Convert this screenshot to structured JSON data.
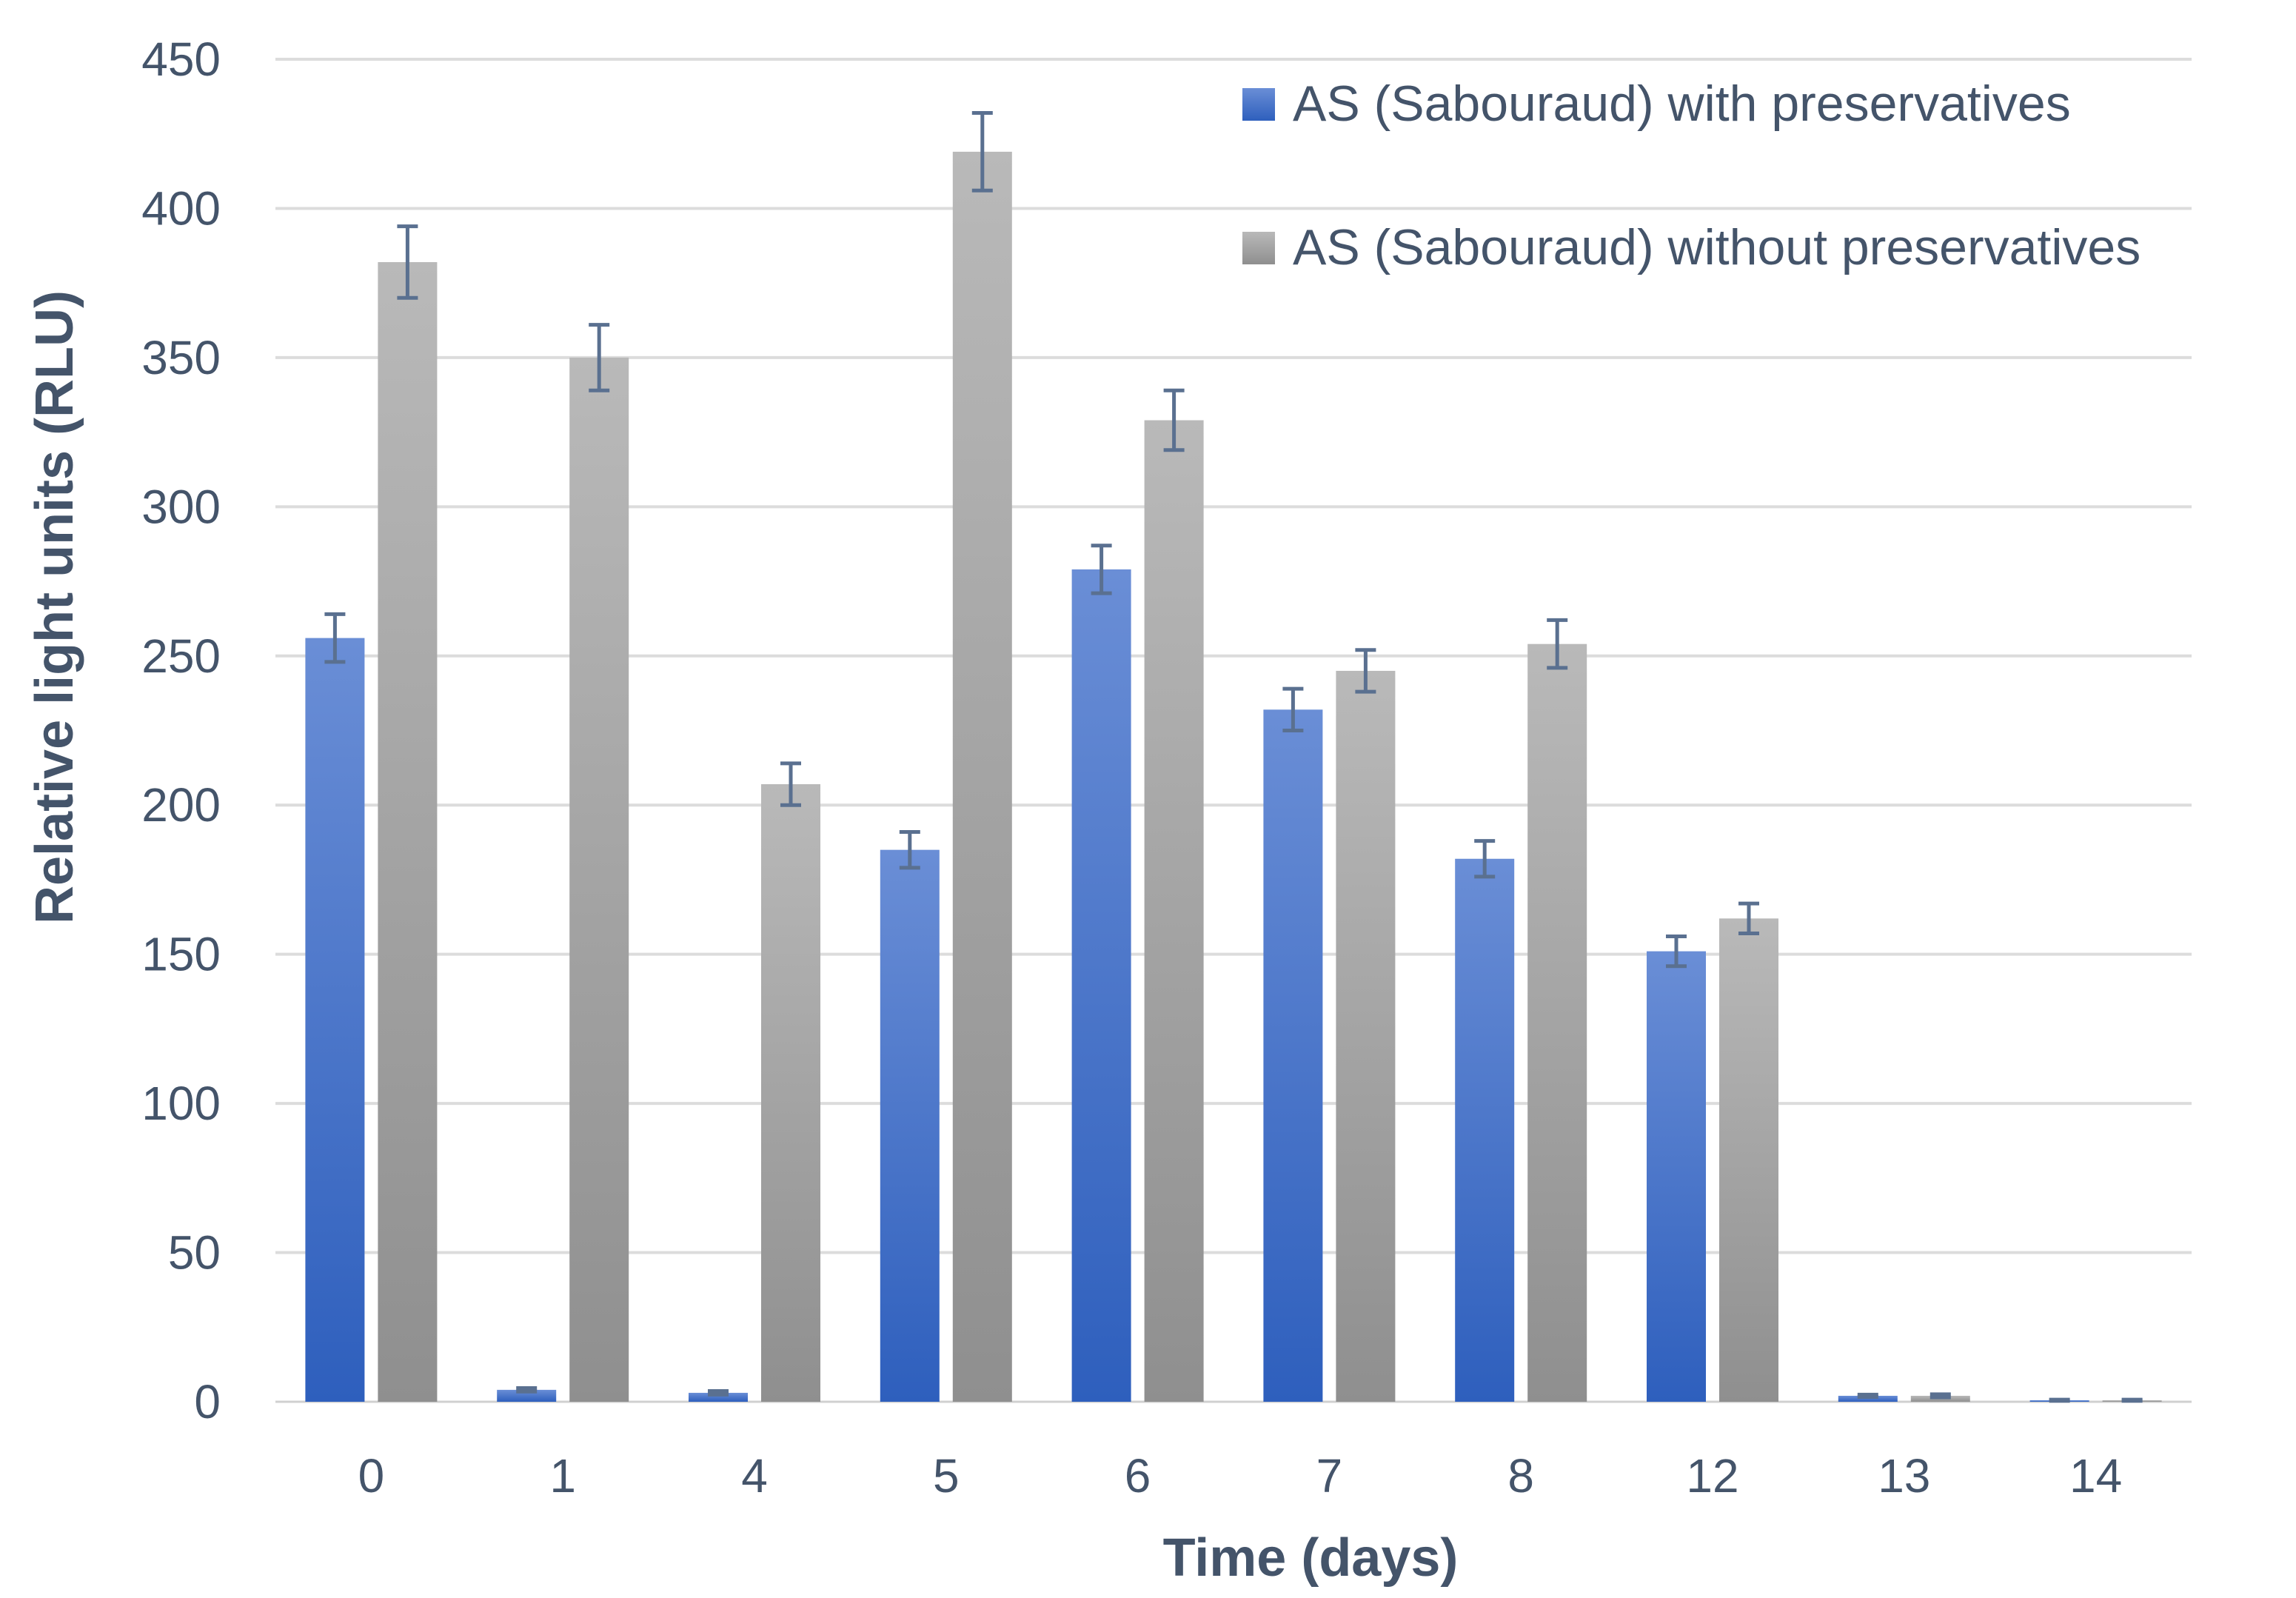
{
  "chart_data": {
    "type": "bar",
    "xlabel": "Time (days)",
    "ylabel": "Relative light units (RLU)",
    "ylim": [
      0,
      450
    ],
    "yticks": [
      0,
      50,
      100,
      150,
      200,
      250,
      300,
      350,
      400,
      450
    ],
    "grid": true,
    "legend_position": "top-right",
    "categories": [
      "0",
      "1",
      "4",
      "5",
      "6",
      "7",
      "8",
      "12",
      "13",
      "14"
    ],
    "series": [
      {
        "name": "AS (Sabouraud) with preservatives",
        "color": "#4472c4",
        "values": [
          256,
          4,
          3,
          185,
          279,
          232,
          182,
          151,
          2,
          0.5
        ],
        "errors": [
          8,
          0.6,
          0.6,
          6,
          8,
          7,
          6,
          5,
          0.4,
          0.2
        ]
      },
      {
        "name": "AS (Sabouraud) without preservatives",
        "color": "#a5a5a5",
        "values": [
          382,
          350,
          207,
          419,
          329,
          245,
          254,
          162,
          2,
          0.5
        ],
        "errors": [
          12,
          11,
          7,
          13,
          10,
          7,
          8,
          5,
          0.5,
          0.2
        ]
      }
    ],
    "error_bar_color": "#5a7090"
  }
}
